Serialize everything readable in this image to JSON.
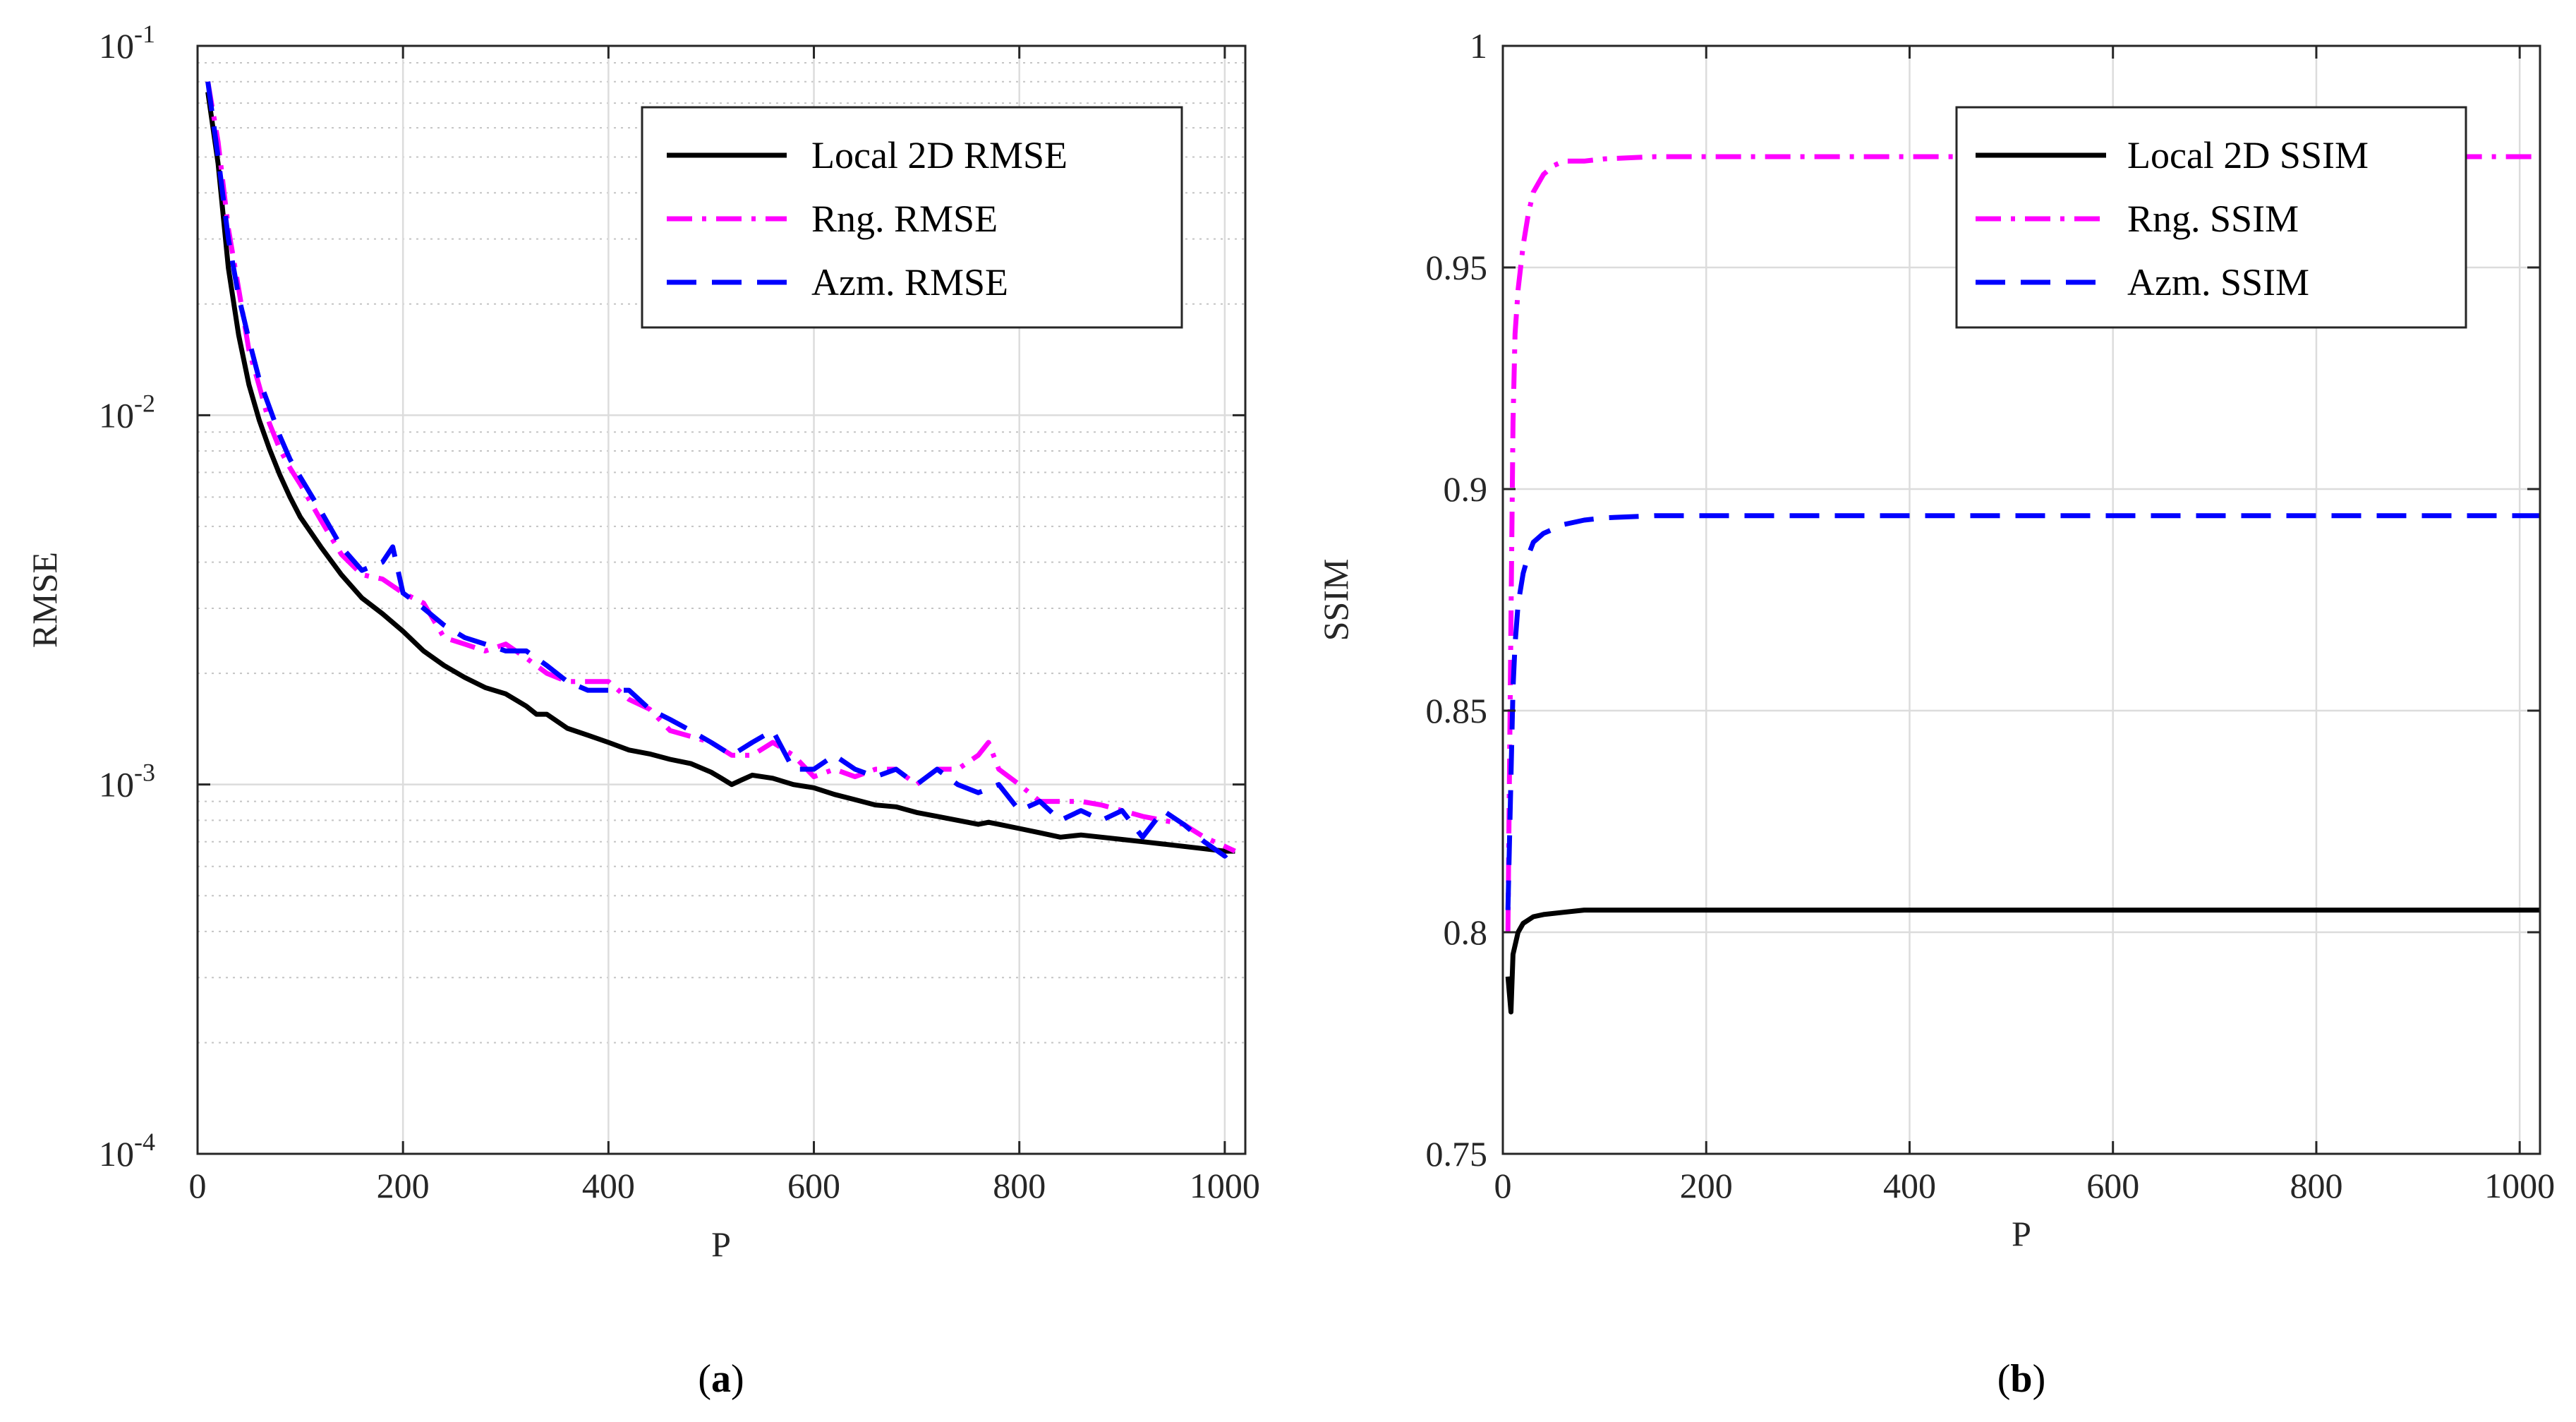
{
  "chart_data": [
    {
      "id": "a",
      "type": "line",
      "panel_label": {
        "open": "(",
        "letter": "a",
        "close": ")"
      },
      "xlabel": "P",
      "ylabel": "RMSE",
      "yscale": "log",
      "xlim": [
        0,
        1020
      ],
      "ylim": [
        0.0001,
        0.1
      ],
      "xticks": [
        0,
        200,
        400,
        600,
        800,
        1000
      ],
      "yticks": [
        {
          "value": 0.1,
          "base": "10",
          "exp": "-1"
        },
        {
          "value": 0.01,
          "base": "10",
          "exp": "-2"
        },
        {
          "value": 0.001,
          "base": "10",
          "exp": "-3"
        },
        {
          "value": 0.0001,
          "base": "10",
          "exp": "-4"
        }
      ],
      "grid": true,
      "legend_position": "top-right",
      "series": [
        {
          "name": "Local 2D RMSE",
          "color": "#000000",
          "style": "solid",
          "x": [
            10,
            20,
            30,
            40,
            50,
            60,
            70,
            80,
            90,
            100,
            120,
            140,
            160,
            180,
            200,
            220,
            240,
            260,
            280,
            300,
            320,
            330,
            340,
            360,
            380,
            400,
            420,
            440,
            460,
            480,
            500,
            510,
            520,
            530,
            540,
            560,
            580,
            600,
            620,
            640,
            660,
            680,
            700,
            720,
            740,
            760,
            770,
            780,
            800,
            820,
            840,
            860,
            880,
            900,
            920,
            940,
            960,
            980,
            1000,
            1010
          ],
          "y": [
            0.075,
            0.048,
            0.025,
            0.0165,
            0.0121,
            0.0097,
            0.0081,
            0.0069,
            0.006,
            0.0053,
            0.0044,
            0.0037,
            0.0032,
            0.0029,
            0.0026,
            0.0023,
            0.0021,
            0.00195,
            0.00183,
            0.00176,
            0.00163,
            0.00155,
            0.00155,
            0.00142,
            0.00136,
            0.0013,
            0.00124,
            0.00121,
            0.00117,
            0.00114,
            0.00108,
            0.00104,
            0.001,
            0.00103,
            0.00106,
            0.00104,
            0.001,
            0.00098,
            0.00094,
            0.00091,
            0.00088,
            0.00087,
            0.00084,
            0.00082,
            0.0008,
            0.00078,
            0.00079,
            0.00078,
            0.00076,
            0.00074,
            0.00072,
            0.00073,
            0.00072,
            0.00071,
            0.0007,
            0.00069,
            0.00068,
            0.00067,
            0.00066,
            0.00066
          ]
        },
        {
          "name": "Rng. RMSE",
          "color": "#ff00ff",
          "style": "dashdot",
          "x": [
            10,
            20,
            30,
            40,
            50,
            60,
            70,
            80,
            90,
            100,
            120,
            140,
            160,
            180,
            200,
            220,
            240,
            260,
            280,
            300,
            320,
            340,
            360,
            380,
            400,
            420,
            440,
            460,
            480,
            500,
            520,
            540,
            560,
            580,
            600,
            620,
            640,
            660,
            680,
            700,
            720,
            740,
            760,
            770,
            780,
            800,
            820,
            840,
            860,
            880,
            900,
            920,
            940,
            960,
            980,
            1000,
            1010
          ],
          "y": [
            0.08,
            0.055,
            0.032,
            0.022,
            0.015,
            0.012,
            0.0095,
            0.0081,
            0.0072,
            0.0065,
            0.0052,
            0.0042,
            0.0037,
            0.0036,
            0.0033,
            0.0031,
            0.0025,
            0.0024,
            0.0023,
            0.0024,
            0.0022,
            0.002,
            0.0019,
            0.0019,
            0.0019,
            0.0017,
            0.0016,
            0.0014,
            0.00135,
            0.0013,
            0.0012,
            0.0012,
            0.0013,
            0.0012,
            0.00105,
            0.0011,
            0.00105,
            0.0011,
            0.0011,
            0.001,
            0.0011,
            0.0011,
            0.0012,
            0.0013,
            0.0011,
            0.001,
            0.0009,
            0.0009,
            0.0009,
            0.00088,
            0.00085,
            0.00082,
            0.0008,
            0.00078,
            0.00072,
            0.00068,
            0.00066
          ]
        },
        {
          "name": "Azm. RMSE",
          "color": "#0000ff",
          "style": "dashed",
          "x": [
            10,
            20,
            30,
            40,
            50,
            60,
            70,
            80,
            90,
            100,
            120,
            140,
            160,
            180,
            190,
            200,
            220,
            240,
            260,
            280,
            300,
            320,
            340,
            360,
            380,
            400,
            420,
            440,
            460,
            480,
            500,
            520,
            540,
            560,
            580,
            600,
            620,
            640,
            660,
            680,
            700,
            720,
            740,
            760,
            780,
            800,
            820,
            840,
            860,
            880,
            900,
            920,
            940,
            960,
            980,
            1000,
            1010
          ],
          "y": [
            0.08,
            0.05,
            0.03,
            0.021,
            0.016,
            0.0125,
            0.0105,
            0.0088,
            0.0076,
            0.0068,
            0.0055,
            0.0044,
            0.0038,
            0.004,
            0.0044,
            0.0033,
            0.003,
            0.0027,
            0.0025,
            0.0024,
            0.0023,
            0.0023,
            0.0021,
            0.0019,
            0.0018,
            0.0018,
            0.0018,
            0.0016,
            0.0015,
            0.0014,
            0.0013,
            0.0012,
            0.0013,
            0.0014,
            0.0011,
            0.0011,
            0.0012,
            0.0011,
            0.00105,
            0.0011,
            0.001,
            0.0011,
            0.001,
            0.00095,
            0.001,
            0.00085,
            0.0009,
            0.0008,
            0.00085,
            0.0008,
            0.00085,
            0.00072,
            0.00085,
            0.00078,
            0.0007,
            0.00064,
            0.00068
          ]
        }
      ]
    },
    {
      "id": "b",
      "type": "line",
      "panel_label": {
        "open": "(",
        "letter": "b",
        "close": ")"
      },
      "xlabel": "P",
      "ylabel": "SSIM",
      "yscale": "linear",
      "xlim": [
        0,
        1020
      ],
      "ylim": [
        0.75,
        1
      ],
      "xticks": [
        0,
        200,
        400,
        600,
        800,
        1000
      ],
      "yticks": [
        {
          "value": 0.75,
          "label": "0.75"
        },
        {
          "value": 0.8,
          "label": "0.8"
        },
        {
          "value": 0.85,
          "label": "0.85"
        },
        {
          "value": 0.9,
          "label": "0.9"
        },
        {
          "value": 0.95,
          "label": "0.95"
        },
        {
          "value": 1,
          "label": "1"
        }
      ],
      "grid": true,
      "legend_position": "top-right",
      "series": [
        {
          "name": "Local 2D SSIM",
          "color": "#000000",
          "style": "solid",
          "x": [
            5,
            8,
            10,
            15,
            20,
            30,
            40,
            60,
            80,
            120,
            200,
            400,
            600,
            800,
            1020
          ],
          "y": [
            0.79,
            0.782,
            0.795,
            0.8,
            0.802,
            0.8035,
            0.804,
            0.8045,
            0.805,
            0.805,
            0.805,
            0.805,
            0.805,
            0.805,
            0.805
          ]
        },
        {
          "name": "Rng. SSIM",
          "color": "#ff00ff",
          "style": "dashdot",
          "x": [
            5,
            8,
            10,
            12,
            15,
            20,
            25,
            30,
            40,
            50,
            60,
            80,
            100,
            150,
            200,
            400,
            600,
            800,
            1020
          ],
          "y": [
            0.8,
            0.87,
            0.915,
            0.935,
            0.945,
            0.955,
            0.962,
            0.967,
            0.971,
            0.973,
            0.974,
            0.974,
            0.9745,
            0.975,
            0.975,
            0.975,
            0.975,
            0.975,
            0.975
          ]
        },
        {
          "name": "Azm. SSIM",
          "color": "#0000ff",
          "style": "dashed",
          "x": [
            5,
            8,
            10,
            12,
            15,
            20,
            25,
            30,
            40,
            50,
            60,
            80,
            100,
            150,
            200,
            400,
            600,
            800,
            1020
          ],
          "y": [
            0.805,
            0.835,
            0.855,
            0.865,
            0.874,
            0.881,
            0.885,
            0.888,
            0.89,
            0.891,
            0.892,
            0.893,
            0.8935,
            0.894,
            0.894,
            0.894,
            0.894,
            0.894,
            0.894
          ]
        }
      ]
    }
  ]
}
